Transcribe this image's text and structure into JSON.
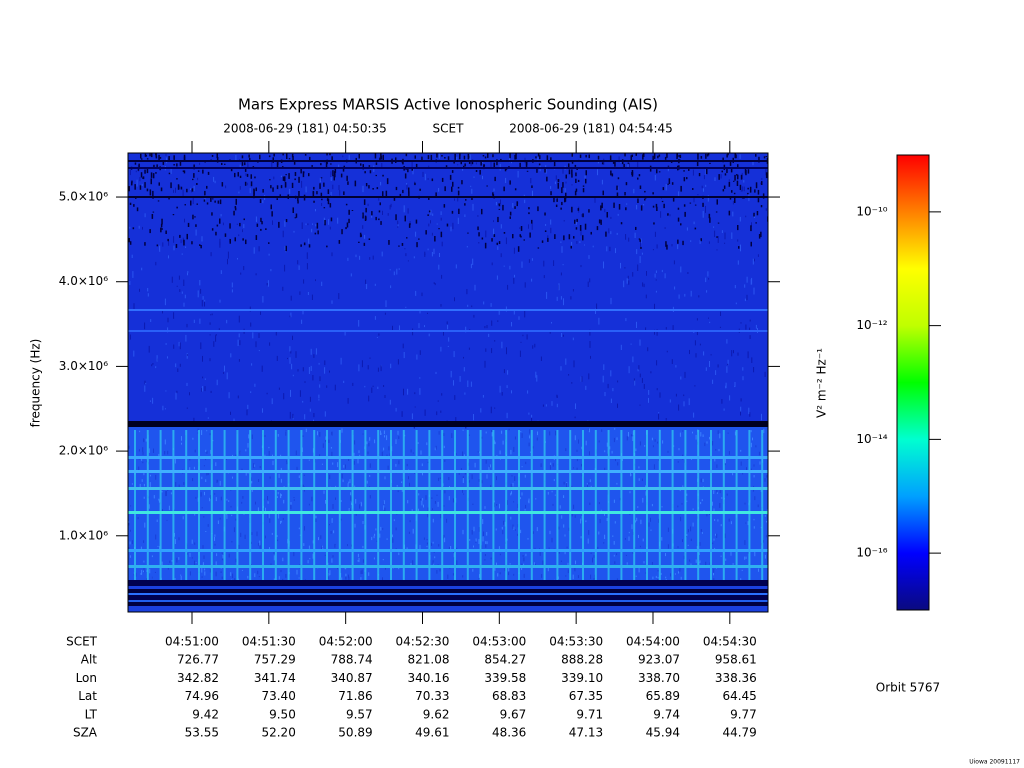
{
  "title": "Mars Express MARSIS Active Ionospheric Sounding (AIS)",
  "time_range": {
    "start": "2008-06-29 (181) 04:50:35",
    "label": "SCET",
    "end": "2008-06-29 (181) 04:54:45"
  },
  "chart_data": {
    "type": "spectrogram",
    "y_label": "frequency (Hz)",
    "ylim": [
      100000,
      5520000
    ],
    "yticks": [
      {
        "value": 1000000,
        "label": "1.0×10⁶"
      },
      {
        "value": 2000000,
        "label": "2.0×10⁶"
      },
      {
        "value": 3000000,
        "label": "3.0×10⁶"
      },
      {
        "value": 4000000,
        "label": "4.0×10⁶"
      },
      {
        "value": 5000000,
        "label": "5.0×10⁶"
      }
    ],
    "colorbar": {
      "label": "V² m⁻² Hz⁻¹",
      "log": true,
      "zlim": [
        1e-17,
        1e-09
      ],
      "ticks": [
        {
          "value": 1e-10,
          "label": "10⁻¹⁰"
        },
        {
          "value": 1e-12,
          "label": "10⁻¹²"
        },
        {
          "value": 1e-14,
          "label": "10⁻¹⁴"
        },
        {
          "value": 1e-16,
          "label": "10⁻¹⁶"
        }
      ],
      "colormap": [
        "#0a0a80",
        "#0000ff",
        "#00a0ff",
        "#00ffd0",
        "#00ff00",
        "#c0ff00",
        "#ffff00",
        "#ff8000",
        "#ff0000"
      ]
    }
  },
  "ephemeris": {
    "row_labels": [
      "SCET",
      "Alt",
      "Lon",
      "Lat",
      "LT",
      "SZA"
    ],
    "columns": [
      [
        "04:51:00",
        "726.77",
        "342.82",
        "74.96",
        "9.42",
        "53.55"
      ],
      [
        "04:51:30",
        "757.29",
        "341.74",
        "73.40",
        "9.50",
        "52.20"
      ],
      [
        "04:52:00",
        "788.74",
        "340.87",
        "71.86",
        "9.57",
        "50.89"
      ],
      [
        "04:52:30",
        "821.08",
        "340.16",
        "70.33",
        "9.62",
        "49.61"
      ],
      [
        "04:53:00",
        "854.27",
        "339.58",
        "68.83",
        "9.67",
        "48.36"
      ],
      [
        "04:53:30",
        "888.28",
        "339.10",
        "67.35",
        "9.71",
        "47.13"
      ],
      [
        "04:54:00",
        "923.07",
        "338.70",
        "65.89",
        "9.74",
        "45.94"
      ],
      [
        "04:54:30",
        "958.61",
        "338.36",
        "64.45",
        "9.77",
        "44.79"
      ]
    ]
  },
  "orbit": "Orbit 5767",
  "credit": "Uiowa 20091117"
}
